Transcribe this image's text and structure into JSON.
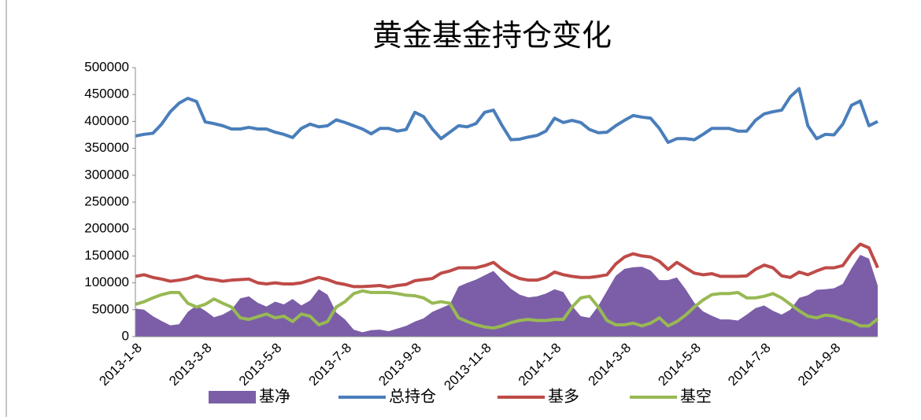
{
  "chart_data": {
    "type": "line",
    "title": "黄金基金持仓变化",
    "categories": [
      "2013-1-8",
      null,
      null,
      null,
      null,
      null,
      null,
      null,
      "2013-3-8",
      null,
      null,
      null,
      null,
      null,
      null,
      null,
      "2013-5-8",
      null,
      null,
      null,
      null,
      null,
      null,
      null,
      "2013-7-8",
      null,
      null,
      null,
      null,
      null,
      null,
      null,
      "2013-9-8",
      null,
      null,
      null,
      null,
      null,
      null,
      null,
      "2013-11-8",
      null,
      null,
      null,
      null,
      null,
      null,
      null,
      "2014-1-8",
      null,
      null,
      null,
      null,
      null,
      null,
      null,
      "2014-3-8",
      null,
      null,
      null,
      null,
      null,
      null,
      null,
      "2014-5-8",
      null,
      null,
      null,
      null,
      null,
      null,
      null,
      "2014-7-8",
      null,
      null,
      null,
      null,
      null,
      null,
      null,
      "2014-9-8",
      null,
      null,
      null,
      null,
      null
    ],
    "series": [
      {
        "name": "基净",
        "type": "area",
        "color": "#7b5ea7",
        "values": [
          52000,
          50000,
          38000,
          29000,
          21000,
          23000,
          46000,
          58000,
          48000,
          36000,
          41000,
          50000,
          71000,
          75000,
          63000,
          56000,
          65000,
          60000,
          70000,
          58000,
          67000,
          88000,
          78000,
          45000,
          32000,
          13000,
          8000,
          12000,
          13000,
          10000,
          15000,
          20000,
          28000,
          34000,
          46000,
          53000,
          60000,
          93000,
          100000,
          106000,
          114000,
          122000,
          105000,
          89000,
          78000,
          73000,
          75000,
          80000,
          88000,
          83000,
          57000,
          38000,
          35000,
          57000,
          85000,
          113000,
          126000,
          129000,
          130000,
          123000,
          105000,
          105000,
          110000,
          88000,
          63000,
          47000,
          39000,
          32000,
          32000,
          30000,
          41000,
          53000,
          58000,
          48000,
          41000,
          50000,
          72000,
          77000,
          87000,
          88000,
          90000,
          98000,
          127000,
          152000,
          145000,
          95000
        ]
      },
      {
        "name": "总持仓",
        "type": "line",
        "color": "#4a7ebb",
        "values": [
          373000,
          376000,
          378000,
          395000,
          418000,
          434000,
          443000,
          437000,
          399000,
          396000,
          392000,
          386000,
          386000,
          389000,
          386000,
          386000,
          380000,
          376000,
          370000,
          387000,
          395000,
          390000,
          392000,
          403000,
          398000,
          392000,
          386000,
          377000,
          387000,
          387000,
          382000,
          385000,
          417000,
          409000,
          386000,
          368000,
          380000,
          392000,
          390000,
          396000,
          417000,
          421000,
          392000,
          366000,
          367000,
          371000,
          374000,
          382000,
          406000,
          398000,
          402000,
          398000,
          385000,
          379000,
          380000,
          392000,
          402000,
          411000,
          408000,
          406000,
          387000,
          361000,
          368000,
          368000,
          366000,
          376000,
          387000,
          387000,
          387000,
          382000,
          382000,
          402000,
          414000,
          418000,
          421000,
          446000,
          461000,
          392000,
          368000,
          376000,
          375000,
          395000,
          430000,
          438000,
          392000,
          400000
        ]
      },
      {
        "name": "基多",
        "type": "line",
        "color": "#be4b48",
        "values": [
          112000,
          115000,
          110000,
          107000,
          103000,
          105000,
          108000,
          113000,
          108000,
          106000,
          103000,
          105000,
          106000,
          107000,
          100000,
          98000,
          100000,
          98000,
          98000,
          100000,
          105000,
          110000,
          106000,
          100000,
          97000,
          93000,
          93000,
          94000,
          95000,
          92000,
          95000,
          97000,
          104000,
          106000,
          108000,
          118000,
          122000,
          128000,
          128000,
          128000,
          132000,
          138000,
          125000,
          115000,
          108000,
          105000,
          105000,
          110000,
          120000,
          115000,
          112000,
          110000,
          110000,
          112000,
          115000,
          135000,
          148000,
          154000,
          150000,
          148000,
          140000,
          125000,
          138000,
          128000,
          118000,
          115000,
          117000,
          112000,
          112000,
          112000,
          113000,
          125000,
          133000,
          128000,
          113000,
          110000,
          120000,
          115000,
          122000,
          128000,
          128000,
          132000,
          155000,
          172000,
          165000,
          128000
        ]
      },
      {
        "name": "基空",
        "type": "line",
        "color": "#98b954",
        "values": [
          60000,
          65000,
          72000,
          78000,
          82000,
          82000,
          62000,
          55000,
          60000,
          70000,
          62000,
          55000,
          35000,
          32000,
          37000,
          42000,
          35000,
          38000,
          28000,
          42000,
          38000,
          22000,
          28000,
          55000,
          65000,
          80000,
          85000,
          82000,
          82000,
          82000,
          80000,
          77000,
          76000,
          72000,
          62000,
          65000,
          62000,
          35000,
          28000,
          22000,
          18000,
          16000,
          20000,
          26000,
          30000,
          32000,
          30000,
          30000,
          32000,
          32000,
          55000,
          72000,
          75000,
          55000,
          30000,
          22000,
          22000,
          25000,
          20000,
          25000,
          35000,
          20000,
          28000,
          40000,
          55000,
          68000,
          78000,
          80000,
          80000,
          82000,
          72000,
          72000,
          75000,
          80000,
          72000,
          60000,
          48000,
          38000,
          35000,
          40000,
          38000,
          32000,
          28000,
          20000,
          20000,
          33000
        ]
      }
    ],
    "ylim": [
      0,
      500000
    ],
    "yticks": [
      0,
      50000,
      100000,
      150000,
      200000,
      250000,
      300000,
      350000,
      400000,
      450000,
      500000
    ],
    "grid": false
  }
}
